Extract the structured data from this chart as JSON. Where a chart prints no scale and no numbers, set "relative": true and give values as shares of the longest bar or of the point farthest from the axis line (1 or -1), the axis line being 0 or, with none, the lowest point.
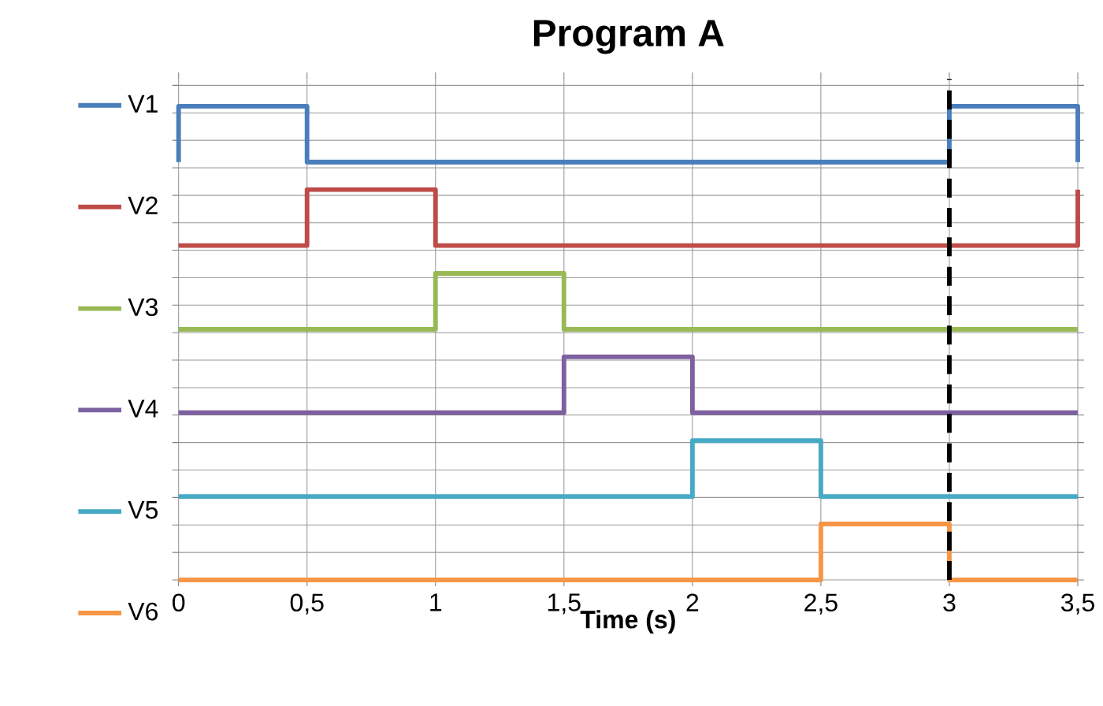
{
  "chart_data": {
    "type": "step",
    "title": "Program A",
    "xlabel": "Time (s)",
    "relative": true,
    "xlim": [
      0,
      3.5
    ],
    "xticks": [
      0,
      {
        "value": 0.5,
        "label": "0,5"
      },
      1,
      {
        "value": 1.5,
        "label": "1,5"
      },
      2,
      {
        "value": 2.5,
        "label": "2,5"
      },
      3,
      {
        "value": 3.5,
        "label": "3,5"
      }
    ],
    "grid": true,
    "legend": "left",
    "line_style": "solid",
    "marker": "none",
    "series": [
      {
        "name": "V1",
        "color": "#4a7ebb",
        "x": [
          0,
          0,
          0.5,
          3,
          3.5
        ],
        "values": [
          0.882,
          1,
          0.882,
          1,
          0.882
        ]
      },
      {
        "name": "V2",
        "color": "#be4b48",
        "x": [
          0,
          0.5,
          1,
          3.5
        ],
        "values": [
          0.706,
          0.824,
          0.706,
          0.824
        ]
      },
      {
        "name": "V3",
        "color": "#98b954",
        "x": [
          0,
          1,
          1.5,
          3.5
        ],
        "values": [
          0.529,
          0.647,
          0.529,
          0.529
        ]
      },
      {
        "name": "V4",
        "color": "#7d60a0",
        "x": [
          0,
          1.5,
          2,
          3.5
        ],
        "values": [
          0.353,
          0.471,
          0.353,
          0.353
        ]
      },
      {
        "name": "V5",
        "color": "#46aac5",
        "x": [
          0,
          2,
          2.5,
          3.5
        ],
        "values": [
          0.176,
          0.294,
          0.176,
          0.176
        ]
      },
      {
        "name": "V6",
        "color": "#f79646",
        "x": [
          0,
          2.5,
          3,
          3.5
        ],
        "values": [
          0,
          0.118,
          0,
          0
        ]
      }
    ],
    "ref_lines": [
      {
        "axis": "x",
        "value": 3,
        "color": "#000000",
        "line_style": "dashed"
      }
    ]
  }
}
